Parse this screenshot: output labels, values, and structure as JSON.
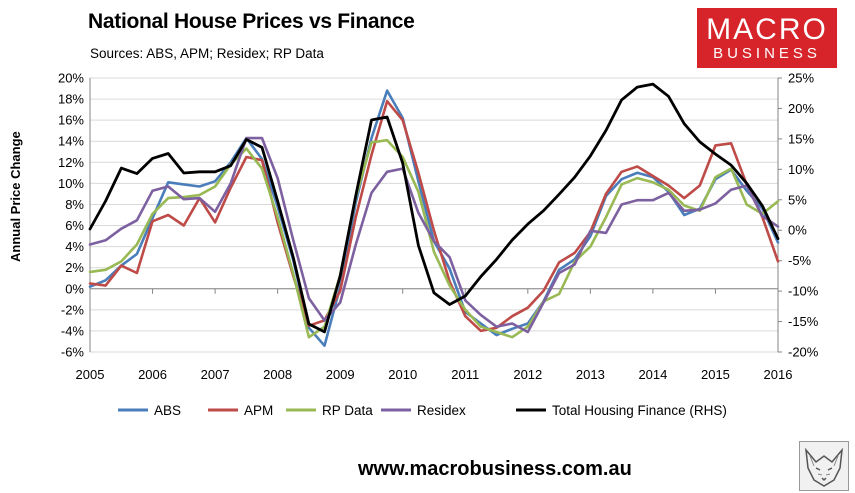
{
  "header": {
    "title": "National House Prices vs Finance",
    "subtitle": "Sources: ABS, APM; Residex; RP Data"
  },
  "logo": {
    "line1": "MACRO",
    "line2": "BUSINESS",
    "color": "#d6242a"
  },
  "footer": {
    "url": "www.macrobusiness.com.au"
  },
  "chart_data": {
    "type": "line",
    "title": "National House Prices vs Finance",
    "ylabel": "Annual Price Change",
    "ylabel_right": "",
    "ylim": [
      -6,
      20
    ],
    "y_ticks": [
      "20%",
      "18%",
      "16%",
      "14%",
      "12%",
      "10%",
      "8%",
      "6%",
      "4%",
      "2%",
      "0%",
      "-2%",
      "-4%",
      "-6%"
    ],
    "ylim_right": [
      -20,
      25
    ],
    "y2_ticks": [
      "25%",
      "20%",
      "15%",
      "10%",
      "5%",
      "0%",
      "-5%",
      "-10%",
      "-15%",
      "-20%"
    ],
    "xlim": [
      2005,
      2016
    ],
    "x_ticks": [
      "2005",
      "2006",
      "2007",
      "2008",
      "2009",
      "2010",
      "2011",
      "2012",
      "2013",
      "2014",
      "2015",
      "2016"
    ],
    "grid": true,
    "legend": "bottom",
    "series": [
      {
        "name": "ABS",
        "axis": "left",
        "color": "#4a7ebb",
        "x": [
          2005.0,
          2005.25,
          2005.5,
          2005.75,
          2006.0,
          2006.25,
          2006.5,
          2006.75,
          2007.0,
          2007.25,
          2007.5,
          2007.75,
          2008.0,
          2008.25,
          2008.5,
          2008.75,
          2009.0,
          2009.25,
          2009.5,
          2009.75,
          2010.0,
          2010.25,
          2010.5,
          2010.75,
          2011.0,
          2011.25,
          2011.5,
          2011.75,
          2012.0,
          2012.25,
          2012.5,
          2012.75,
          2013.0,
          2013.25,
          2013.5,
          2013.75,
          2014.0,
          2014.25,
          2014.5,
          2014.75,
          2015.0,
          2015.25,
          2015.5,
          2015.75,
          2016.0
        ],
        "values": [
          0.2,
          0.8,
          2.2,
          3.3,
          6.7,
          10.1,
          9.9,
          9.7,
          10.2,
          12.0,
          14.3,
          12.3,
          7.8,
          2.7,
          -3.7,
          -5.4,
          0.2,
          8.2,
          14.3,
          18.8,
          16.2,
          10.2,
          4.5,
          1.9,
          -2.2,
          -3.3,
          -4.4,
          -3.8,
          -3.3,
          -1.2,
          1.8,
          2.8,
          5.0,
          8.8,
          10.4,
          11.0,
          10.6,
          9.2,
          7.0,
          7.6,
          10.4,
          11.3,
          9.3,
          7.6,
          4.4
        ]
      },
      {
        "name": "APM",
        "axis": "left",
        "color": "#be4b48",
        "x": [
          2005.0,
          2005.25,
          2005.5,
          2005.75,
          2006.0,
          2006.25,
          2006.5,
          2006.75,
          2007.0,
          2007.25,
          2007.5,
          2007.75,
          2008.0,
          2008.25,
          2008.5,
          2008.75,
          2009.0,
          2009.25,
          2009.5,
          2009.75,
          2010.0,
          2010.25,
          2010.5,
          2010.75,
          2011.0,
          2011.25,
          2011.5,
          2011.75,
          2012.0,
          2012.25,
          2012.5,
          2012.75,
          2013.0,
          2013.25,
          2013.5,
          2013.75,
          2014.0,
          2014.25,
          2014.5,
          2014.75,
          2015.0,
          2015.25,
          2015.5,
          2015.75,
          2016.0
        ],
        "values": [
          0.5,
          0.3,
          2.2,
          1.5,
          6.4,
          7.0,
          6.0,
          8.6,
          6.3,
          9.6,
          12.5,
          12.2,
          6.3,
          1.2,
          -3.5,
          -3.0,
          -0.2,
          6.8,
          12.7,
          17.8,
          16.0,
          11.0,
          5.5,
          0.7,
          -2.6,
          -4.0,
          -3.7,
          -2.6,
          -1.8,
          -0.2,
          2.5,
          3.4,
          5.4,
          9.0,
          11.1,
          11.6,
          10.7,
          9.8,
          8.6,
          9.8,
          13.6,
          13.8,
          9.9,
          6.8,
          2.6
        ]
      },
      {
        "name": "RP Data",
        "axis": "left",
        "color": "#98b954",
        "x": [
          2005.0,
          2005.25,
          2005.5,
          2005.75,
          2006.0,
          2006.25,
          2006.5,
          2006.75,
          2007.0,
          2007.25,
          2007.5,
          2007.75,
          2008.0,
          2008.25,
          2008.5,
          2008.75,
          2009.0,
          2009.25,
          2009.5,
          2009.75,
          2010.0,
          2010.25,
          2010.5,
          2010.75,
          2011.0,
          2011.25,
          2011.5,
          2011.75,
          2012.0,
          2012.25,
          2012.5,
          2012.75,
          2013.0,
          2013.25,
          2013.5,
          2013.75,
          2014.0,
          2014.25,
          2014.5,
          2014.75,
          2015.0,
          2015.25,
          2015.5,
          2015.75,
          2016.0
        ],
        "values": [
          1.6,
          1.8,
          2.6,
          4.2,
          7.1,
          8.6,
          8.7,
          8.9,
          9.7,
          11.8,
          13.3,
          11.4,
          6.8,
          1.4,
          -4.6,
          -3.6,
          1.3,
          8.7,
          13.9,
          14.1,
          12.5,
          9.2,
          3.5,
          0.3,
          -2.0,
          -3.6,
          -4.1,
          -4.6,
          -3.6,
          -1.2,
          -0.5,
          2.6,
          4.0,
          6.8,
          9.9,
          10.5,
          10.1,
          9.4,
          7.9,
          7.4,
          10.6,
          11.4,
          8.0,
          7.1,
          8.3
        ]
      },
      {
        "name": "Residex",
        "axis": "left",
        "color": "#7d60a0",
        "x": [
          2005.0,
          2005.25,
          2005.5,
          2005.75,
          2006.0,
          2006.25,
          2006.5,
          2006.75,
          2007.0,
          2007.25,
          2007.5,
          2007.75,
          2008.0,
          2008.25,
          2008.5,
          2008.75,
          2009.0,
          2009.25,
          2009.5,
          2009.75,
          2010.0,
          2010.25,
          2010.5,
          2010.75,
          2011.0,
          2011.25,
          2011.5,
          2011.75,
          2012.0,
          2012.25,
          2012.5,
          2012.75,
          2013.0,
          2013.25,
          2013.5,
          2013.75,
          2014.0,
          2014.25,
          2014.5,
          2014.75,
          2015.0,
          2015.25,
          2015.5,
          2015.75,
          2016.0
        ],
        "values": [
          4.2,
          4.6,
          5.7,
          6.5,
          9.3,
          9.7,
          8.5,
          8.6,
          7.3,
          10.0,
          14.3,
          14.3,
          10.5,
          4.6,
          -0.9,
          -3.0,
          -1.3,
          4.2,
          9.1,
          11.1,
          11.4,
          7.2,
          4.5,
          3.0,
          -1.1,
          -2.5,
          -3.6,
          -3.3,
          -4.1,
          -1.3,
          1.5,
          2.3,
          5.5,
          5.3,
          8.0,
          8.4,
          8.4,
          9.1,
          7.4,
          7.5,
          8.1,
          9.4,
          9.8,
          6.9,
          5.9
        ]
      },
      {
        "name": "Total Housing Finance (RHS)",
        "axis": "right",
        "color": "#000000",
        "x": [
          2005.0,
          2005.25,
          2005.5,
          2005.75,
          2006.0,
          2006.25,
          2006.5,
          2006.75,
          2007.0,
          2007.25,
          2007.5,
          2007.75,
          2008.0,
          2008.25,
          2008.5,
          2008.75,
          2009.0,
          2009.25,
          2009.5,
          2009.75,
          2010.0,
          2010.25,
          2010.5,
          2010.75,
          2011.0,
          2011.25,
          2011.5,
          2011.75,
          2012.0,
          2012.25,
          2012.5,
          2012.75,
          2013.0,
          2013.25,
          2013.5,
          2013.75,
          2014.0,
          2014.25,
          2014.5,
          2014.75,
          2015.0,
          2015.25,
          2015.5,
          2015.75,
          2016.0
        ],
        "values": [
          0.2,
          4.8,
          10.2,
          9.3,
          11.8,
          12.6,
          9.4,
          9.6,
          9.6,
          10.6,
          14.9,
          13.6,
          4.8,
          -4.5,
          -15.4,
          -16.7,
          -7.5,
          5.7,
          18.1,
          18.6,
          11.0,
          -2.5,
          -10.3,
          -12.2,
          -10.8,
          -7.6,
          -4.8,
          -1.6,
          1.0,
          3.2,
          5.9,
          8.7,
          12.2,
          16.4,
          21.4,
          23.5,
          24.0,
          22.0,
          17.5,
          14.5,
          12.5,
          10.7,
          7.7,
          4.0,
          -1.4
        ]
      }
    ]
  }
}
